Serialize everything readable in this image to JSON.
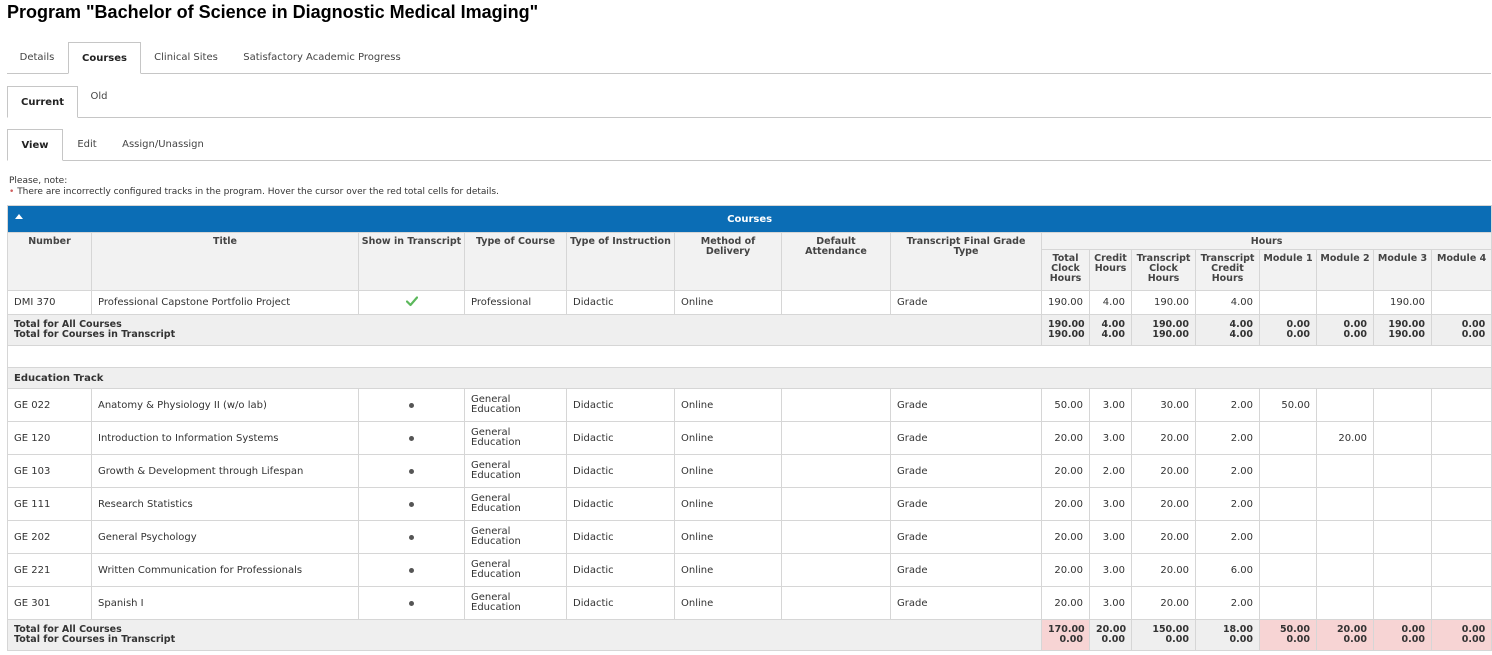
{
  "page": {
    "title": "Program \"Bachelor of Science in Diagnostic Medical Imaging\""
  },
  "main_tabs": [
    "Details",
    "Courses",
    "Clinical Sites",
    "Satisfactory Academic Progress"
  ],
  "version_tabs": [
    "Current",
    "Old"
  ],
  "mode_tabs": [
    "View",
    "Edit",
    "Assign/Unassign"
  ],
  "note": {
    "heading": "Please, note:",
    "bullet": "•",
    "text": "There are incorrectly configured tracks in the program. Hover the cursor over the red total cells for details."
  },
  "table": {
    "title": "Courses",
    "headers": {
      "number": "Number",
      "title": "Title",
      "show_in_transcript": "Show in Transcript",
      "type_of_course": "Type of Course",
      "type_of_instruction": "Type of Instruction",
      "method_of_delivery": "Method of Delivery",
      "default_attendance": "Default Attendance",
      "final_grade_type": "Transcript Final Grade Type",
      "hours": "Hours",
      "total_clock_hours": "Total Clock Hours",
      "credit_hours": "Credit Hours",
      "transcript_clock_hours": "Transcript Clock Hours",
      "transcript_credit_hours": "Transcript Credit Hours",
      "module1": "Module 1",
      "module2": "Module 2",
      "module3": "Module 3",
      "module4": "Module 4"
    },
    "core": {
      "number": "DMI 370",
      "title": "Professional Capstone Portfolio Project",
      "transcript_icon": "check-icon",
      "course_type": "Professional",
      "instruction": "Didactic",
      "delivery": "Online",
      "attendance": "",
      "grade": "Grade",
      "total_clock": "190.00",
      "credit": "4.00",
      "t_clock": "190.00",
      "t_credit": "4.00",
      "m1": "",
      "m2": "",
      "m3": "190.00",
      "m4": ""
    },
    "core_totals": {
      "label_all": "Total for All Courses",
      "label_transcript": "Total for Courses in Transcript",
      "total_clock": [
        "190.00",
        "190.00"
      ],
      "credit": [
        "4.00",
        "4.00"
      ],
      "t_clock": [
        "190.00",
        "190.00"
      ],
      "t_credit": [
        "4.00",
        "4.00"
      ],
      "m1": [
        "0.00",
        "0.00"
      ],
      "m2": [
        "0.00",
        "0.00"
      ],
      "m3": [
        "190.00",
        "190.00"
      ],
      "m4": [
        "0.00",
        "0.00"
      ]
    },
    "track_name": "Education Track",
    "track_rows": [
      {
        "number": "GE 022",
        "title": "Anatomy & Physiology II (w/o lab)",
        "course_type": "General Education",
        "instruction": "Didactic",
        "delivery": "Online",
        "attendance": "",
        "grade": "Grade",
        "total_clock": "50.00",
        "credit": "3.00",
        "t_clock": "30.00",
        "t_credit": "2.00",
        "m1": "50.00",
        "m2": "",
        "m3": "",
        "m4": ""
      },
      {
        "number": "GE 120",
        "title": "Introduction to Information Systems",
        "course_type": "General Education",
        "instruction": "Didactic",
        "delivery": "Online",
        "attendance": "",
        "grade": "Grade",
        "total_clock": "20.00",
        "credit": "3.00",
        "t_clock": "20.00",
        "t_credit": "2.00",
        "m1": "",
        "m2": "20.00",
        "m3": "",
        "m4": ""
      },
      {
        "number": "GE 103",
        "title": "Growth & Development through Lifespan",
        "course_type": "General Education",
        "instruction": "Didactic",
        "delivery": "Online",
        "attendance": "",
        "grade": "Grade",
        "total_clock": "20.00",
        "credit": "2.00",
        "t_clock": "20.00",
        "t_credit": "2.00",
        "m1": "",
        "m2": "",
        "m3": "",
        "m4": ""
      },
      {
        "number": "GE 111",
        "title": "Research Statistics",
        "course_type": "General Education",
        "instruction": "Didactic",
        "delivery": "Online",
        "attendance": "",
        "grade": "Grade",
        "total_clock": "20.00",
        "credit": "3.00",
        "t_clock": "20.00",
        "t_credit": "2.00",
        "m1": "",
        "m2": "",
        "m3": "",
        "m4": ""
      },
      {
        "number": "GE 202",
        "title": "General Psychology",
        "course_type": "General Education",
        "instruction": "Didactic",
        "delivery": "Online",
        "attendance": "",
        "grade": "Grade",
        "total_clock": "20.00",
        "credit": "3.00",
        "t_clock": "20.00",
        "t_credit": "2.00",
        "m1": "",
        "m2": "",
        "m3": "",
        "m4": ""
      },
      {
        "number": "GE 221",
        "title": "Written Communication for Professionals",
        "course_type": "General Education",
        "instruction": "Didactic",
        "delivery": "Online",
        "attendance": "",
        "grade": "Grade",
        "total_clock": "20.00",
        "credit": "3.00",
        "t_clock": "20.00",
        "t_credit": "6.00",
        "m1": "",
        "m2": "",
        "m3": "",
        "m4": ""
      },
      {
        "number": "GE 301",
        "title": "Spanish I",
        "course_type": "General Education",
        "instruction": "Didactic",
        "delivery": "Online",
        "attendance": "",
        "grade": "Grade",
        "total_clock": "20.00",
        "credit": "3.00",
        "t_clock": "20.00",
        "t_credit": "2.00",
        "m1": "",
        "m2": "",
        "m3": "",
        "m4": ""
      }
    ],
    "track_totals": {
      "label_all": "Total for All Courses",
      "label_transcript": "Total for Courses in Transcript",
      "total_clock": [
        "170.00",
        "0.00"
      ],
      "credit": [
        "20.00",
        "0.00"
      ],
      "t_clock": [
        "150.00",
        "0.00"
      ],
      "t_credit": [
        "18.00",
        "0.00"
      ],
      "m1": [
        "50.00",
        "0.00"
      ],
      "m2": [
        "20.00",
        "0.00"
      ],
      "m3": [
        "0.00",
        "0.00"
      ],
      "m4": [
        "0.00",
        "0.00"
      ]
    },
    "warning_cell_color": "#f7d4d4",
    "header_bar_color": "#0b6db5"
  }
}
